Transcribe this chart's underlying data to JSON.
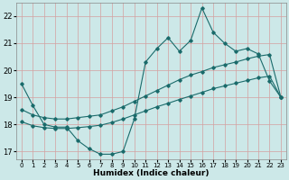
{
  "xlabel": "Humidex (Indice chaleur)",
  "bg_color": "#cce8e8",
  "grid_color": "#d4a0a0",
  "line_color": "#1a6b6b",
  "xlim": [
    -0.5,
    23.5
  ],
  "ylim": [
    16.7,
    22.5
  ],
  "yticks": [
    17,
    18,
    19,
    20,
    21,
    22
  ],
  "xticks": [
    0,
    1,
    2,
    3,
    4,
    5,
    6,
    7,
    8,
    9,
    10,
    11,
    12,
    13,
    14,
    15,
    16,
    17,
    18,
    19,
    20,
    21,
    22,
    23
  ],
  "line1_y": [
    19.5,
    18.7,
    18.0,
    17.9,
    17.9,
    17.4,
    17.1,
    16.9,
    16.9,
    17.0,
    18.2,
    20.3,
    20.8,
    21.2,
    20.7,
    21.1,
    22.3,
    21.4,
    21.0,
    20.7,
    20.8,
    20.6,
    19.6,
    19.0
  ],
  "line2_y": [
    18.55,
    18.35,
    18.25,
    18.2,
    18.2,
    18.25,
    18.3,
    18.35,
    18.5,
    18.65,
    18.85,
    19.05,
    19.25,
    19.45,
    19.65,
    19.82,
    19.95,
    20.1,
    20.2,
    20.3,
    20.42,
    20.52,
    20.58,
    19.0
  ],
  "line3_y": [
    18.1,
    17.95,
    17.88,
    17.85,
    17.85,
    17.88,
    17.92,
    17.97,
    18.07,
    18.2,
    18.35,
    18.5,
    18.65,
    18.78,
    18.92,
    19.05,
    19.18,
    19.32,
    19.42,
    19.52,
    19.62,
    19.72,
    19.78,
    19.0
  ]
}
